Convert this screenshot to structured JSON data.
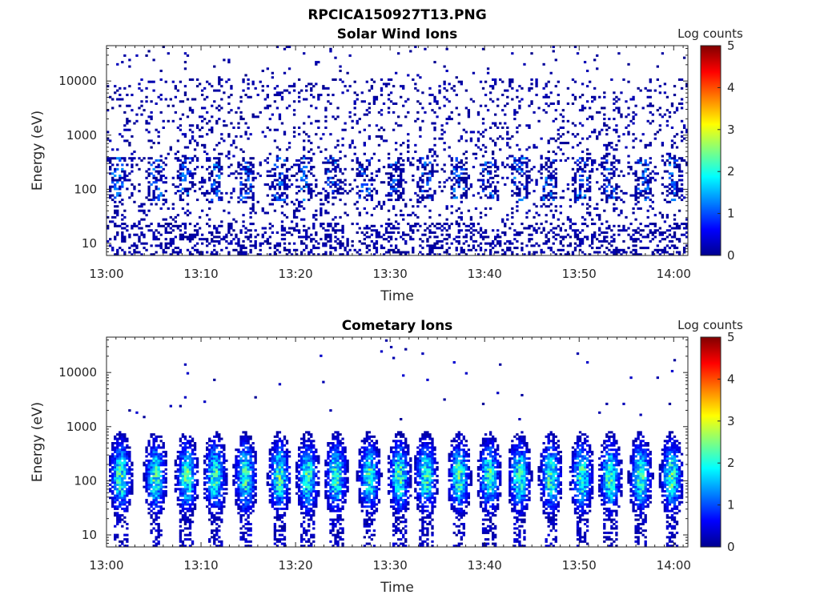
{
  "figure_title": "RPCICA150927T13.PNG",
  "chart_data": [
    {
      "type": "heatmap",
      "title": "Solar Wind Ions",
      "xlabel": "Time",
      "ylabel": "Energy (eV)",
      "x_ticks": [
        "13:00",
        "13:10",
        "13:20",
        "13:30",
        "13:40",
        "13:50",
        "14:00"
      ],
      "x_range_minutes": [
        0,
        61.5
      ],
      "y_scale": "log",
      "y_ticks": [
        10,
        100,
        1000,
        10000
      ],
      "y_range": [
        6,
        45000
      ],
      "colorbar": {
        "label": "Log counts",
        "ticks": [
          0,
          1,
          2,
          3,
          4,
          5
        ],
        "range": [
          0,
          5
        ],
        "colormap": "jet"
      },
      "pattern": {
        "kind": "solar_wind",
        "pulse_times_minutes": [
          1.2,
          5.2,
          8.3,
          11.5,
          14.8,
          18.3,
          21.0,
          24.0,
          27.3,
          30.5,
          33.8,
          37.2,
          40.3,
          43.7,
          46.8,
          50.3,
          53.3,
          56.7,
          60.0
        ],
        "note_counts_max_log": 1.4
      }
    },
    {
      "type": "heatmap",
      "title": "Cometary Ions",
      "xlabel": "Time",
      "ylabel": "Energy (eV)",
      "x_ticks": [
        "13:00",
        "13:10",
        "13:20",
        "13:30",
        "13:40",
        "13:50",
        "14:00"
      ],
      "x_range_minutes": [
        0,
        61.5
      ],
      "y_scale": "log",
      "y_ticks": [
        10,
        100,
        1000,
        10000
      ],
      "y_range": [
        6,
        45000
      ],
      "colorbar": {
        "label": "Log counts",
        "ticks": [
          0,
          1,
          2,
          3,
          4,
          5
        ],
        "range": [
          0,
          5
        ],
        "colormap": "jet"
      },
      "pattern": {
        "kind": "cometary",
        "pulse_times_minutes": [
          1.5,
          5.2,
          8.5,
          11.5,
          14.7,
          18.3,
          21.3,
          24.3,
          27.8,
          31.0,
          33.8,
          37.3,
          40.5,
          43.7,
          47.0,
          50.3,
          53.3,
          56.5,
          59.8
        ],
        "peak_energy_eV": 120,
        "peak_log_counts": 2.8
      }
    }
  ]
}
